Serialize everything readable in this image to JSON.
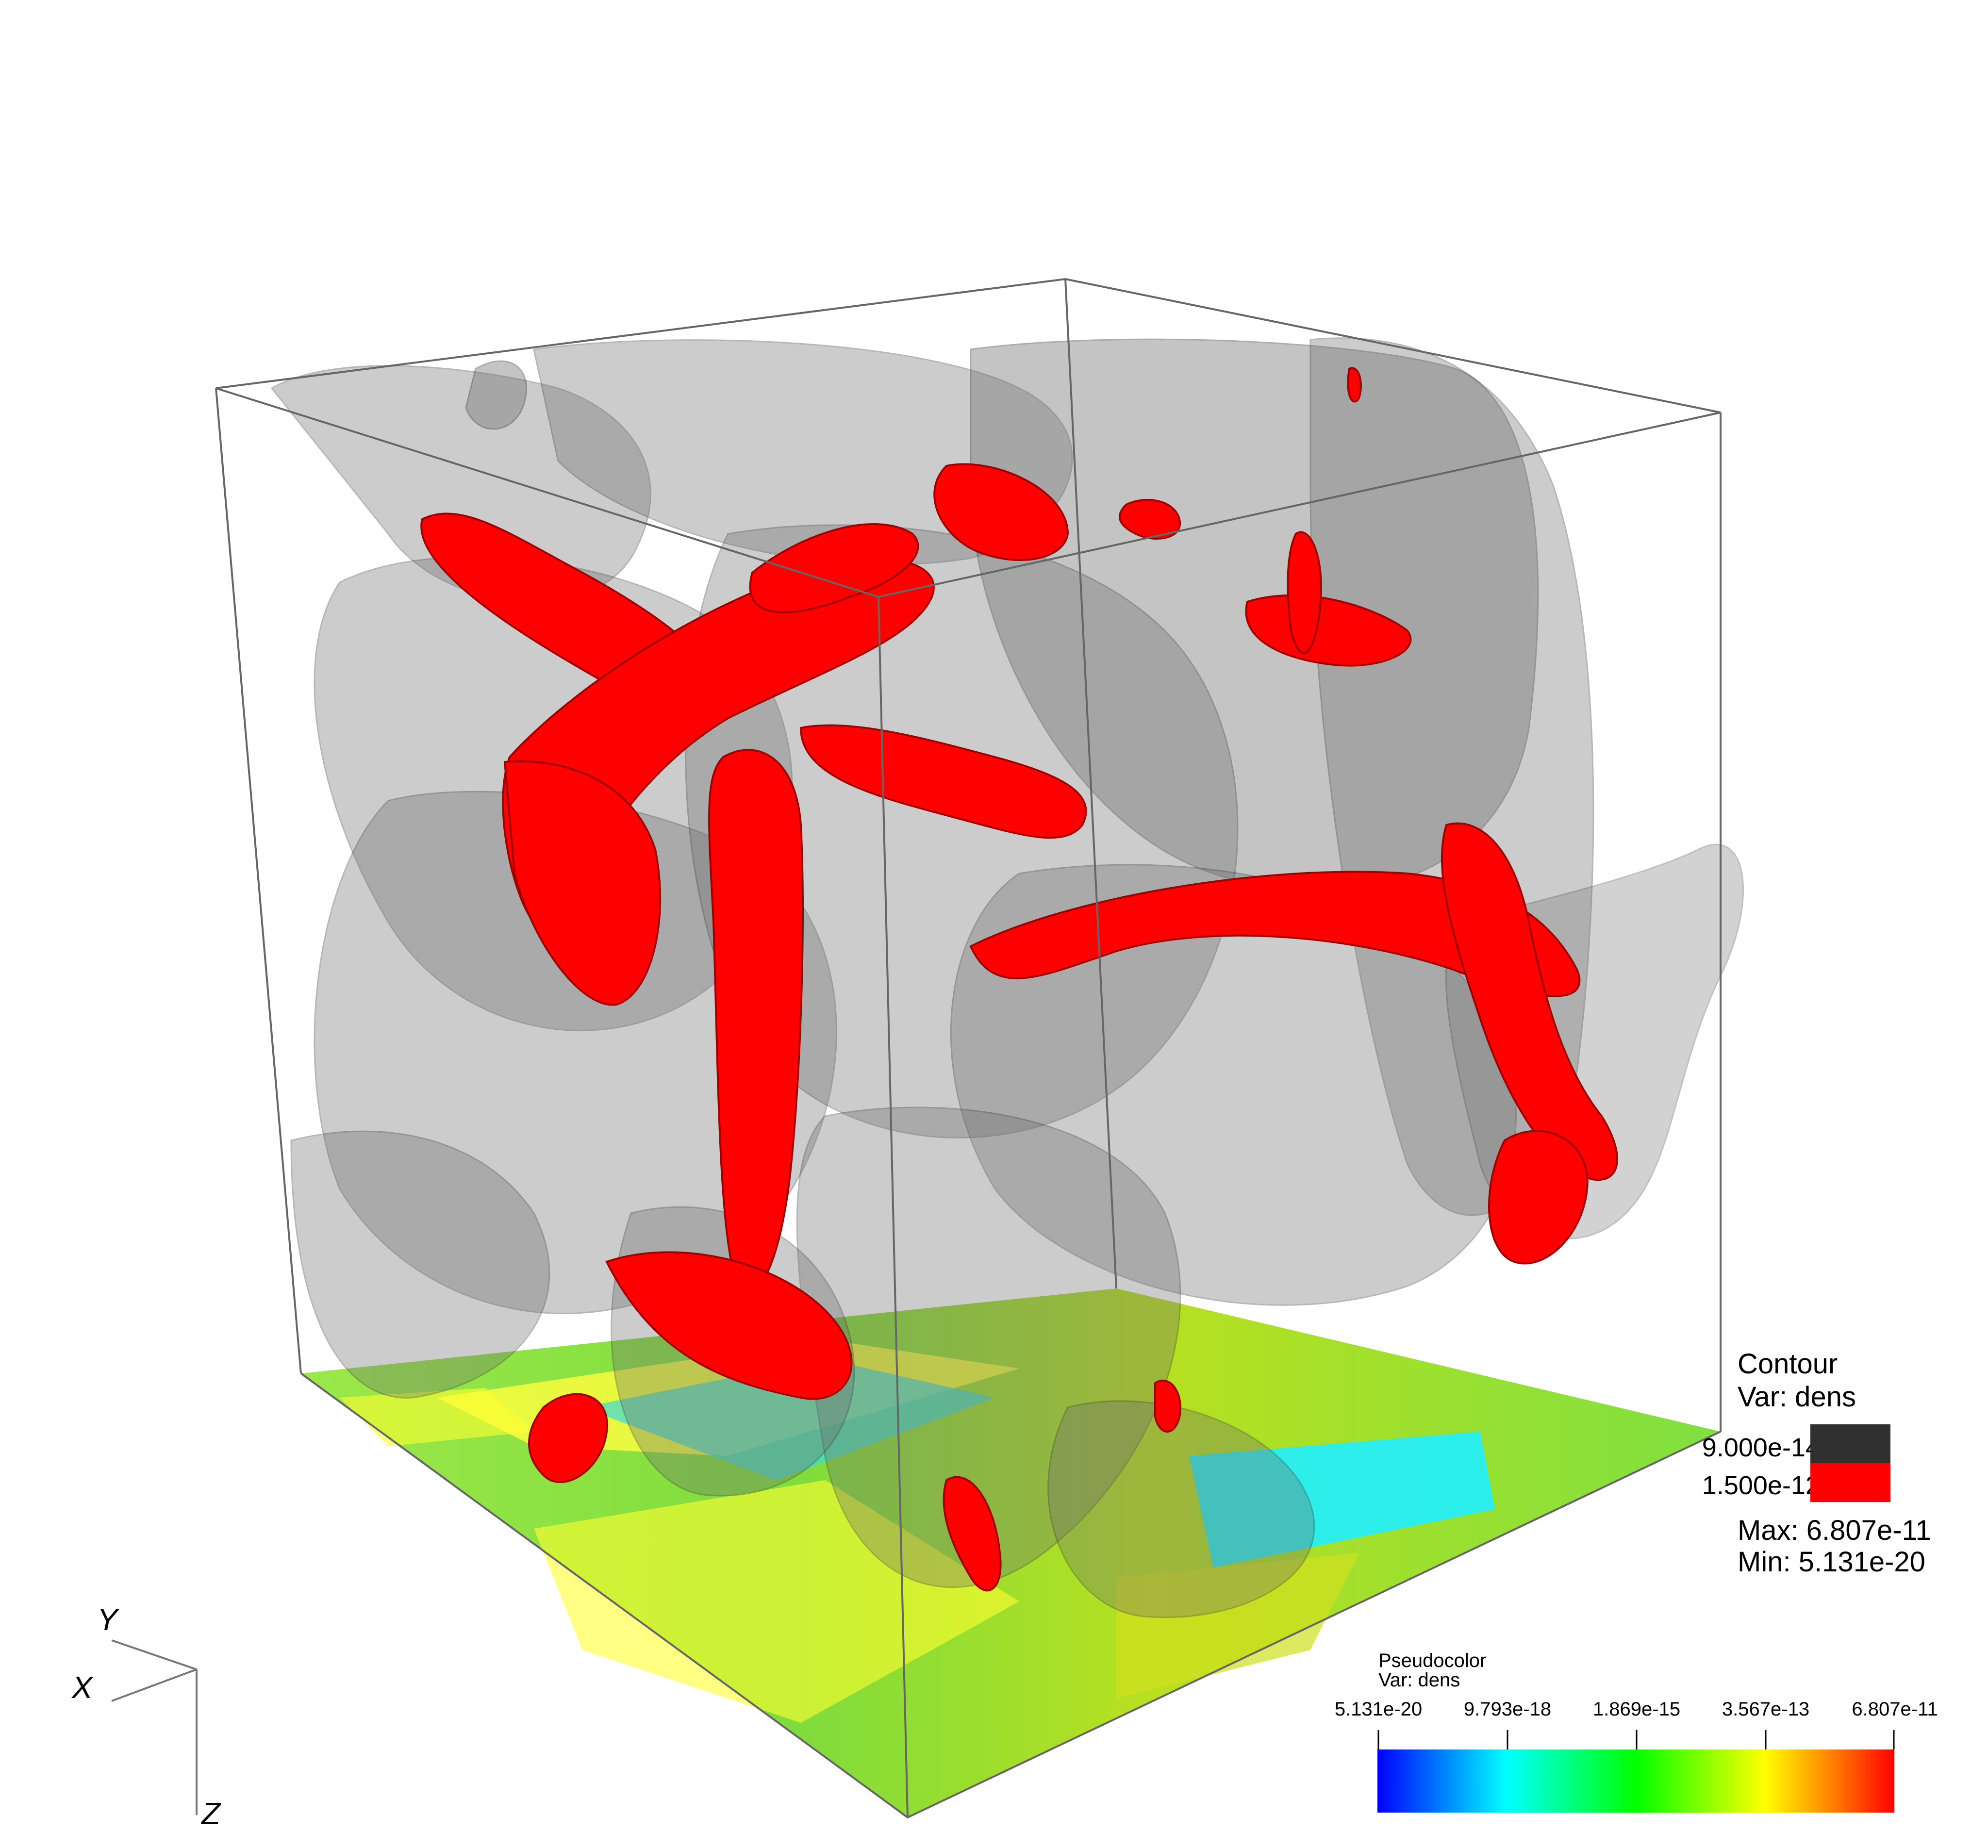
{
  "contour_legend": {
    "title": "Contour",
    "var": "Var: dens",
    "levels": [
      {
        "label": "9.000e-14",
        "color": "#303030"
      },
      {
        "label": "1.500e-12",
        "color": "#ff0000"
      }
    ],
    "max": "Max:  6.807e-11",
    "min": "Min:  5.131e-20"
  },
  "pseudocolor_legend": {
    "title": "Pseudocolor",
    "var": "Var: dens",
    "ticks": [
      "5.131e-20",
      "9.793e-18",
      "1.869e-15",
      "3.567e-13",
      "6.807e-11"
    ],
    "colormap": [
      "#0000ff",
      "#00ffff",
      "#00ff00",
      "#ffff00",
      "#ff8000",
      "#ff0000"
    ]
  },
  "axes": {
    "x": "X",
    "y": "Y",
    "z": "Z"
  },
  "colors": {
    "gray_surface": "#6e6e6e",
    "red_surface": "#ff0000",
    "box_line": "#666666"
  }
}
